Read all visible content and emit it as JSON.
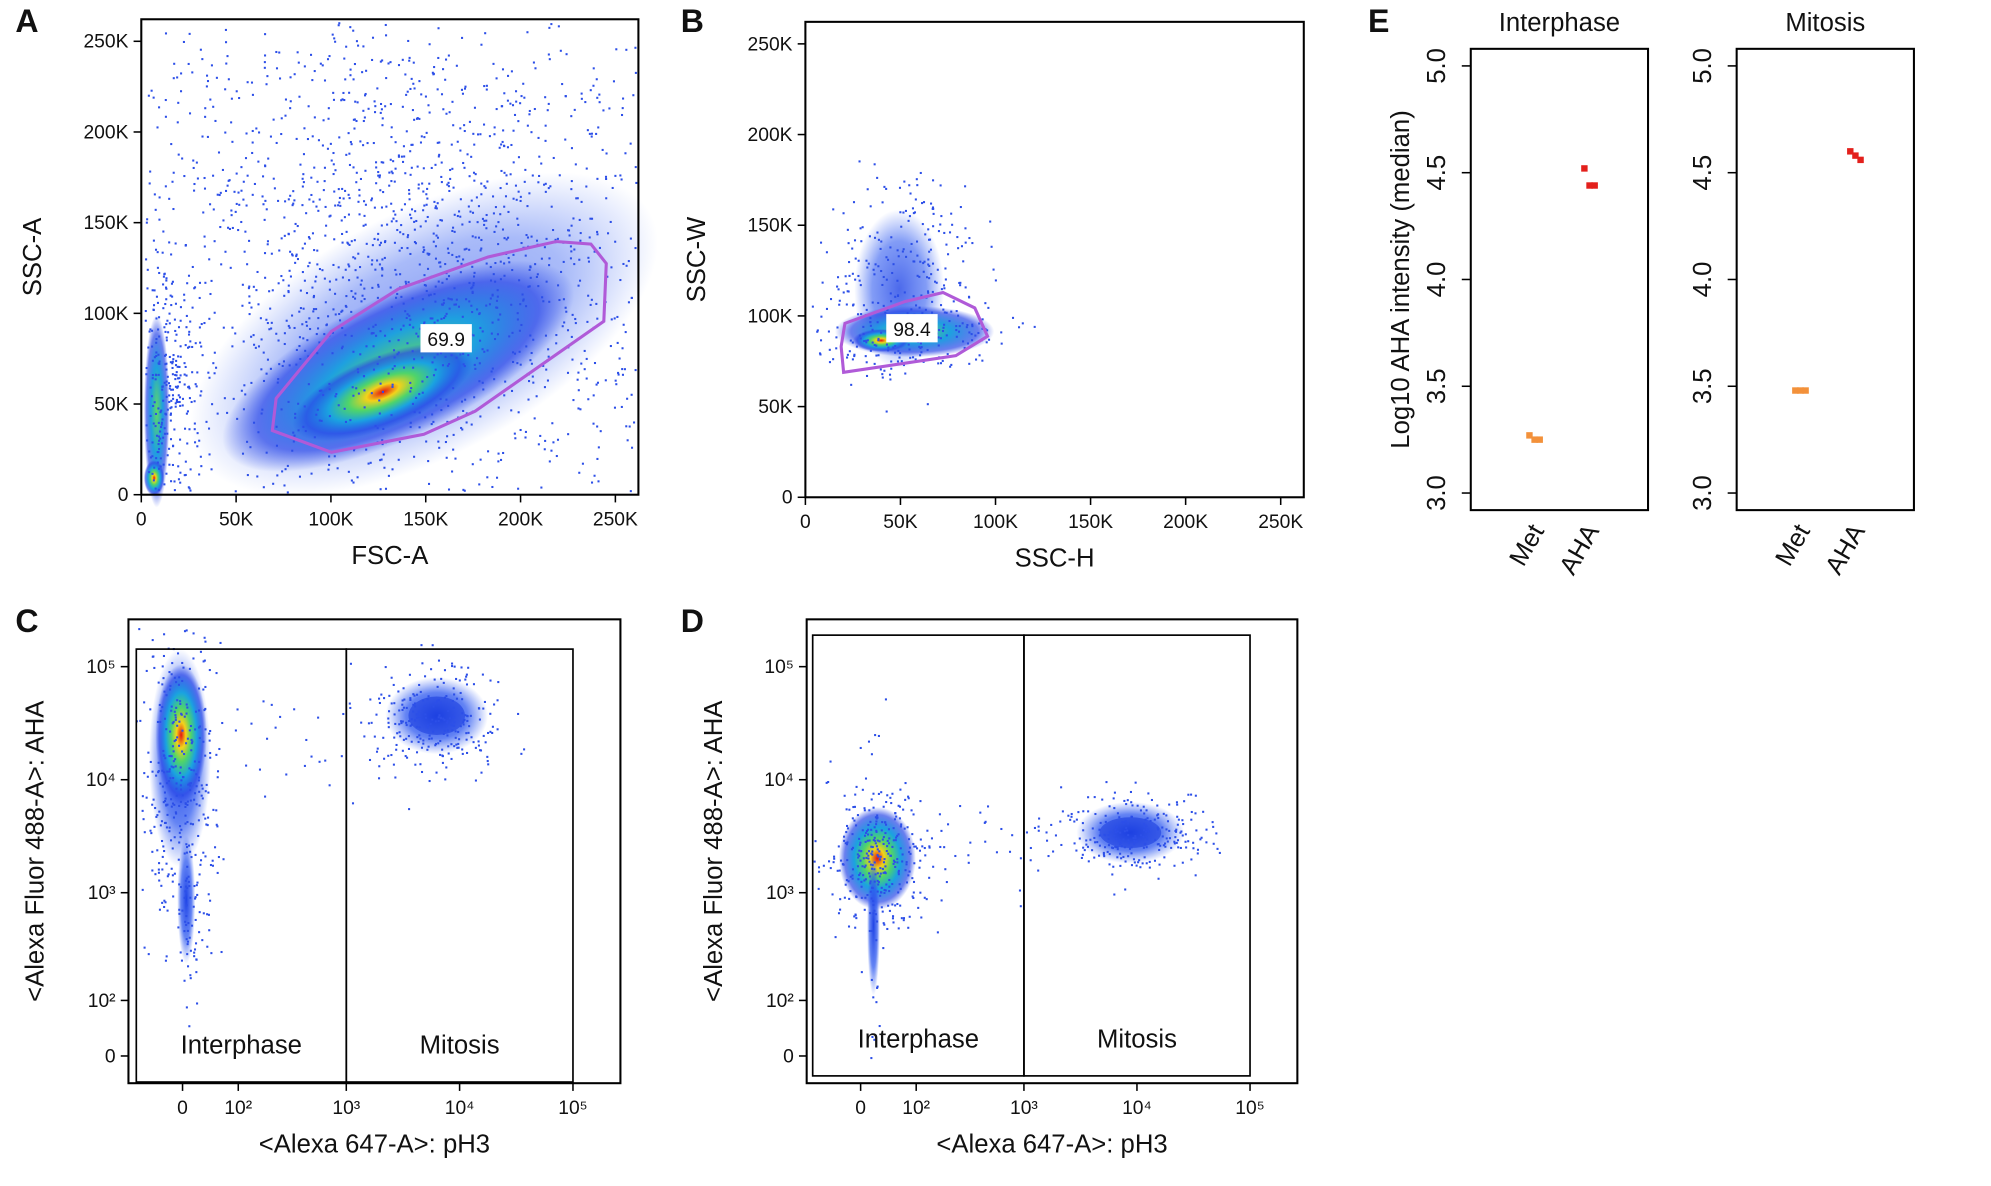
{
  "chart_data": [
    {
      "type": "density",
      "panel": "A",
      "xlabel": "FSC-A",
      "ylabel": "SSC-A",
      "xlim": [
        0,
        262144
      ],
      "ylim": [
        0,
        262144
      ],
      "xticks": [
        0,
        {
          "value": 50000,
          "label": "50K"
        },
        {
          "value": 100000,
          "label": "100K"
        },
        {
          "value": 150000,
          "label": "150K"
        },
        {
          "value": 200000,
          "label": "200K"
        },
        {
          "value": 250000,
          "label": "250K"
        }
      ],
      "yticks": [
        0,
        {
          "value": 50000,
          "label": "50K"
        },
        {
          "value": 100000,
          "label": "100K"
        },
        {
          "value": 150000,
          "label": "150K"
        },
        {
          "value": 200000,
          "label": "200K"
        },
        {
          "value": 250000,
          "label": "250K"
        }
      ],
      "gate_color": "#b05ad8",
      "gates": [
        {
          "value": 69.9,
          "x": [
            69100,
            100250,
            149000,
            176100,
            243900,
            245200,
            237100,
            218800,
            182900,
            135500,
            100250,
            71100
          ],
          "y": [
            35400,
            23400,
            33300,
            46100,
            95600,
            127500,
            138200,
            139600,
            131100,
            113400,
            90000,
            53100
          ]
        }
      ]
    },
    {
      "type": "density",
      "panel": "B",
      "xlabel": "SSC-H",
      "ylabel": "SSC-W",
      "xlim": [
        0,
        262144
      ],
      "ylim": [
        0,
        262144
      ],
      "xticks": [
        0,
        {
          "value": 50000,
          "label": "50K"
        },
        {
          "value": 100000,
          "label": "100K"
        },
        {
          "value": 150000,
          "label": "150K"
        },
        {
          "value": 200000,
          "label": "200K"
        },
        {
          "value": 250000,
          "label": "250K"
        }
      ],
      "yticks": [
        0,
        {
          "value": 50000,
          "label": "50K"
        },
        {
          "value": 100000,
          "label": "100K"
        },
        {
          "value": 150000,
          "label": "150K"
        },
        {
          "value": 200000,
          "label": "200K"
        },
        {
          "value": 250000,
          "label": "250K"
        }
      ],
      "gate_color": "#b05ad8",
      "gates": [
        {
          "value": 98.4,
          "x": [
            20100,
            79100,
            95800,
            89100,
            72400,
            52300,
            20800,
            18800
          ],
          "y": [
            68900,
            78100,
            88800,
            104400,
            112900,
            107900,
            95900,
            83100
          ]
        }
      ]
    },
    {
      "type": "density",
      "panel": "C",
      "xlabel": "<Alexa 647-A>: pH3",
      "ylabel": "<Alexa Fluor 488-A>: AHA",
      "xscale": "logicle",
      "yscale": "logicle",
      "xlim": [
        -96,
        262144
      ],
      "ylim": [
        -42,
        262144
      ],
      "xticks": [
        0,
        {
          "value": 100,
          "label": "10²"
        },
        {
          "value": 1000,
          "label": "10³"
        },
        {
          "value": 10000,
          "label": "10⁴"
        },
        {
          "value": 100000,
          "label": "10⁵"
        }
      ],
      "yticks": [
        0,
        {
          "value": 100,
          "label": "10²"
        },
        {
          "value": 1000,
          "label": "10³"
        },
        {
          "value": 10000,
          "label": "10⁴"
        },
        {
          "value": 100000,
          "label": "10⁵"
        }
      ],
      "gate_color": "#000000",
      "boxes": [
        {
          "name": "Interphase",
          "x": [
            -78,
            1000
          ],
          "y": [
            -40,
            143000
          ]
        },
        {
          "name": "Mitosis",
          "x": [
            1000,
            100000
          ],
          "y": [
            -40,
            143000
          ]
        }
      ]
    },
    {
      "type": "density",
      "panel": "D",
      "xlabel": "<Alexa 647-A>: pH3",
      "ylabel": "<Alexa Fluor 488-A>: AHA",
      "xscale": "logicle",
      "yscale": "logicle",
      "xlim": [
        -96,
        262144
      ],
      "ylim": [
        -42,
        262144
      ],
      "xticks": [
        0,
        {
          "value": 100,
          "label": "10²"
        },
        {
          "value": 1000,
          "label": "10³"
        },
        {
          "value": 10000,
          "label": "10⁴"
        },
        {
          "value": 100000,
          "label": "10⁵"
        }
      ],
      "yticks": [
        0,
        {
          "value": 100,
          "label": "10²"
        },
        {
          "value": 1000,
          "label": "10³"
        },
        {
          "value": 10000,
          "label": "10⁴"
        },
        {
          "value": 100000,
          "label": "10⁵"
        }
      ],
      "gate_color": "#000000",
      "boxes": [
        {
          "name": "Interphase",
          "x": [
            -82,
            1000
          ],
          "y": [
            -30,
            190000
          ]
        },
        {
          "name": "Mitosis",
          "x": [
            1000,
            100000
          ],
          "y": [
            -30,
            190000
          ]
        }
      ]
    },
    {
      "type": "strip",
      "panel": "E",
      "title": "Interphase",
      "ylabel": "Log10 AHA intensity (median)",
      "categories": [
        "Met",
        "AHA"
      ],
      "colors": [
        "#f3913a",
        "#e3201c"
      ],
      "values": [
        [
          3.27,
          3.25,
          3.25
        ],
        [
          4.52,
          4.44,
          4.44
        ]
      ],
      "ylim": [
        2.92,
        5.08
      ],
      "yticks": [
        {
          "value": 3,
          "label": "3.0"
        },
        3.5,
        {
          "value": 4,
          "label": "4.0"
        },
        4.5,
        {
          "value": 5,
          "label": "5.0"
        }
      ]
    },
    {
      "type": "strip",
      "title": "Mitosis",
      "categories": [
        "Met",
        "AHA"
      ],
      "colors": [
        "#f3913a",
        "#e3201c"
      ],
      "values": [
        [
          3.48,
          3.48,
          3.48
        ],
        [
          4.6,
          4.58,
          4.56
        ]
      ],
      "ylim": [
        2.92,
        5.08
      ],
      "yticks": [
        {
          "value": 3,
          "label": "3.0"
        },
        3.5,
        {
          "value": 4,
          "label": "4.0"
        },
        4.5,
        {
          "value": 5,
          "label": "5.0"
        }
      ]
    }
  ]
}
